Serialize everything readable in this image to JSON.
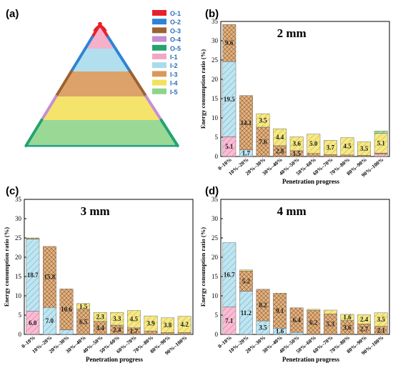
{
  "colors": {
    "O-1": "#e8202a",
    "O-2": "#2e83d6",
    "O-3": "#9c6232",
    "O-4": "#c68fd0",
    "O-5": "#22a370",
    "I-1": "#f4a7c4",
    "I-2": "#a9dceb",
    "I-3": "#d9985a",
    "I-4": "#f3e15c",
    "I-5": "#8fd48a"
  },
  "panels": {
    "a": {
      "label": "(a)",
      "legend": [
        "O-1",
        "O-2",
        "O-3",
        "O-4",
        "O-5",
        "I-1",
        "I-2",
        "I-3",
        "I-4",
        "I-5"
      ]
    },
    "b": {
      "label": "(b)"
    },
    "c": {
      "label": "(c)"
    },
    "d": {
      "label": "(d)"
    }
  },
  "chart_data": [
    {
      "type": "bar",
      "stacked": true,
      "panel": "b",
      "title": "2 mm",
      "xlabel": "Penetration progress",
      "ylabel": "Energy consumption ratio (%)",
      "ylim": [
        0,
        35
      ],
      "yticks": [
        0,
        5,
        10,
        15,
        20,
        25,
        30,
        35
      ],
      "categories": [
        "0–10%",
        "10%–20%",
        "20%–30%",
        "30%–40%",
        "40%–50%",
        "50%–60%",
        "60%–70%",
        "70%–80%",
        "80%–90%",
        "90%–100%"
      ],
      "series": [
        {
          "name": "I-1",
          "values": [
            5.1,
            0,
            0,
            0,
            0,
            0,
            0,
            0,
            0,
            0.6
          ]
        },
        {
          "name": "I-2",
          "values": [
            19.5,
            1.7,
            0,
            0,
            0,
            0,
            0,
            0,
            0,
            0
          ]
        },
        {
          "name": "I-3",
          "values": [
            9.6,
            14.1,
            7.6,
            2.8,
            1.5,
            0.8,
            0.5,
            0.4,
            0.3,
            0.3
          ]
        },
        {
          "name": "I-4",
          "values": [
            0,
            0,
            3.5,
            4.4,
            3.6,
            5.0,
            3.7,
            4.5,
            3.5,
            5.1
          ]
        },
        {
          "name": "I-5",
          "values": [
            0,
            0,
            0,
            0,
            0,
            0,
            0,
            0,
            0,
            0.6
          ]
        }
      ],
      "data_labels": [
        {
          "i": 0,
          "series": "I-1",
          "text": "5.1"
        },
        {
          "i": 0,
          "series": "I-2",
          "text": "19.5"
        },
        {
          "i": 0,
          "series": "I-3",
          "text": "9.6"
        },
        {
          "i": 1,
          "series": "I-2",
          "text": "1.7"
        },
        {
          "i": 1,
          "series": "I-3",
          "text": "14.1"
        },
        {
          "i": 2,
          "series": "I-3",
          "text": "7.6"
        },
        {
          "i": 2,
          "series": "I-4",
          "text": "3.5"
        },
        {
          "i": 3,
          "series": "I-3",
          "text": "2.8"
        },
        {
          "i": 3,
          "series": "I-4",
          "text": "4.4"
        },
        {
          "i": 4,
          "series": "I-3",
          "text": "1.5"
        },
        {
          "i": 4,
          "series": "I-4",
          "text": "3.6"
        },
        {
          "i": 5,
          "series": "I-4",
          "text": "5.0"
        },
        {
          "i": 6,
          "series": "I-4",
          "text": "3.7"
        },
        {
          "i": 7,
          "series": "I-4",
          "text": "4.5"
        },
        {
          "i": 8,
          "series": "I-4",
          "text": "3.5"
        },
        {
          "i": 9,
          "series": "I-4",
          "text": "5.1"
        }
      ]
    },
    {
      "type": "bar",
      "stacked": true,
      "panel": "c",
      "title": "3 mm",
      "xlabel": "Penetration progress",
      "ylabel": "Energy consumption ratio (%)",
      "ylim": [
        0,
        35
      ],
      "yticks": [
        0,
        5,
        10,
        15,
        20,
        25,
        30,
        35
      ],
      "categories": [
        "0–10%",
        "10%–20%",
        "20%–30%",
        "30%–40%",
        "40%–50%",
        "50%–60%",
        "60%–70%",
        "70%–80%",
        "80%–90%",
        "90%–100%"
      ],
      "series": [
        {
          "name": "I-1",
          "values": [
            6.0,
            0,
            0,
            0,
            0,
            0,
            0,
            0,
            0,
            0
          ]
        },
        {
          "name": "I-2",
          "values": [
            18.7,
            7.0,
            1.2,
            0,
            0,
            0,
            0,
            0,
            0,
            0
          ]
        },
        {
          "name": "I-3",
          "values": [
            0.3,
            15.8,
            10.6,
            6.5,
            3.4,
            2.4,
            1.7,
            0.9,
            0.5,
            0.5
          ]
        },
        {
          "name": "I-4",
          "values": [
            0,
            0,
            0,
            1.5,
            2.3,
            3.3,
            4.5,
            3.9,
            3.8,
            4.2
          ]
        }
      ],
      "data_labels": [
        {
          "i": 0,
          "series": "I-1",
          "text": "6.0"
        },
        {
          "i": 0,
          "series": "I-2",
          "text": "18.7"
        },
        {
          "i": 1,
          "series": "I-2",
          "text": "7.0"
        },
        {
          "i": 1,
          "series": "I-3",
          "text": "15.8"
        },
        {
          "i": 2,
          "series": "I-3",
          "text": "10.6"
        },
        {
          "i": 3,
          "series": "I-3",
          "text": "6.5"
        },
        {
          "i": 3,
          "series": "I-4",
          "text": "1.5"
        },
        {
          "i": 4,
          "series": "I-3",
          "text": "3.4"
        },
        {
          "i": 4,
          "series": "I-4",
          "text": "2.3"
        },
        {
          "i": 5,
          "series": "I-3",
          "text": "2.4"
        },
        {
          "i": 5,
          "series": "I-4",
          "text": "3.3"
        },
        {
          "i": 6,
          "series": "I-3",
          "text": "1.7"
        },
        {
          "i": 6,
          "series": "I-4",
          "text": "4.5"
        },
        {
          "i": 7,
          "series": "I-4",
          "text": "3.9"
        },
        {
          "i": 8,
          "series": "I-4",
          "text": "3.8"
        },
        {
          "i": 9,
          "series": "I-4",
          "text": "4.2"
        }
      ]
    },
    {
      "type": "bar",
      "stacked": true,
      "panel": "d",
      "title": "4 mm",
      "xlabel": "Penetration progress",
      "ylabel": "Energy consumption ratio (%)",
      "ylim": [
        0,
        35
      ],
      "yticks": [
        0,
        5,
        10,
        15,
        20,
        25,
        30,
        35
      ],
      "categories": [
        "0–10%",
        "10%–20%",
        "20%–30%",
        "30%–40%",
        "40%–50%",
        "50%–60%",
        "60%–70%",
        "70%–80%",
        "80%–90%",
        "90%–100%"
      ],
      "series": [
        {
          "name": "I-1",
          "values": [
            7.1,
            0,
            0,
            0,
            0,
            0,
            0,
            0,
            0,
            0
          ]
        },
        {
          "name": "I-2",
          "values": [
            16.7,
            11.2,
            3.5,
            1.6,
            0.5,
            0,
            0,
            0,
            0,
            0
          ]
        },
        {
          "name": "I-3",
          "values": [
            0,
            5.2,
            8.2,
            9.1,
            6.4,
            6.2,
            5.3,
            3.6,
            2.7,
            2.1
          ]
        },
        {
          "name": "I-4",
          "values": [
            0,
            0.3,
            0,
            0,
            0,
            0.3,
            1.0,
            1.6,
            2.4,
            3.5
          ]
        }
      ],
      "data_labels": [
        {
          "i": 0,
          "series": "I-1",
          "text": "7.1"
        },
        {
          "i": 0,
          "series": "I-2",
          "text": "16.7"
        },
        {
          "i": 1,
          "series": "I-2",
          "text": "11.2"
        },
        {
          "i": 1,
          "series": "I-3",
          "text": "5.2"
        },
        {
          "i": 2,
          "series": "I-2",
          "text": "3.5"
        },
        {
          "i": 2,
          "series": "I-3",
          "text": "8.2"
        },
        {
          "i": 3,
          "series": "I-2",
          "text": "1.6"
        },
        {
          "i": 3,
          "series": "I-3",
          "text": "9.1"
        },
        {
          "i": 4,
          "series": "I-3",
          "text": "6.4"
        },
        {
          "i": 5,
          "series": "I-3",
          "text": "6.2"
        },
        {
          "i": 6,
          "series": "I-3",
          "text": "5.3"
        },
        {
          "i": 7,
          "series": "I-3",
          "text": "3.6"
        },
        {
          "i": 7,
          "series": "I-4",
          "text": "1.6"
        },
        {
          "i": 8,
          "series": "I-3",
          "text": "2.7"
        },
        {
          "i": 8,
          "series": "I-4",
          "text": "2.4"
        },
        {
          "i": 9,
          "series": "I-3",
          "text": "2.1"
        },
        {
          "i": 9,
          "series": "I-4",
          "text": "3.5"
        }
      ]
    }
  ]
}
